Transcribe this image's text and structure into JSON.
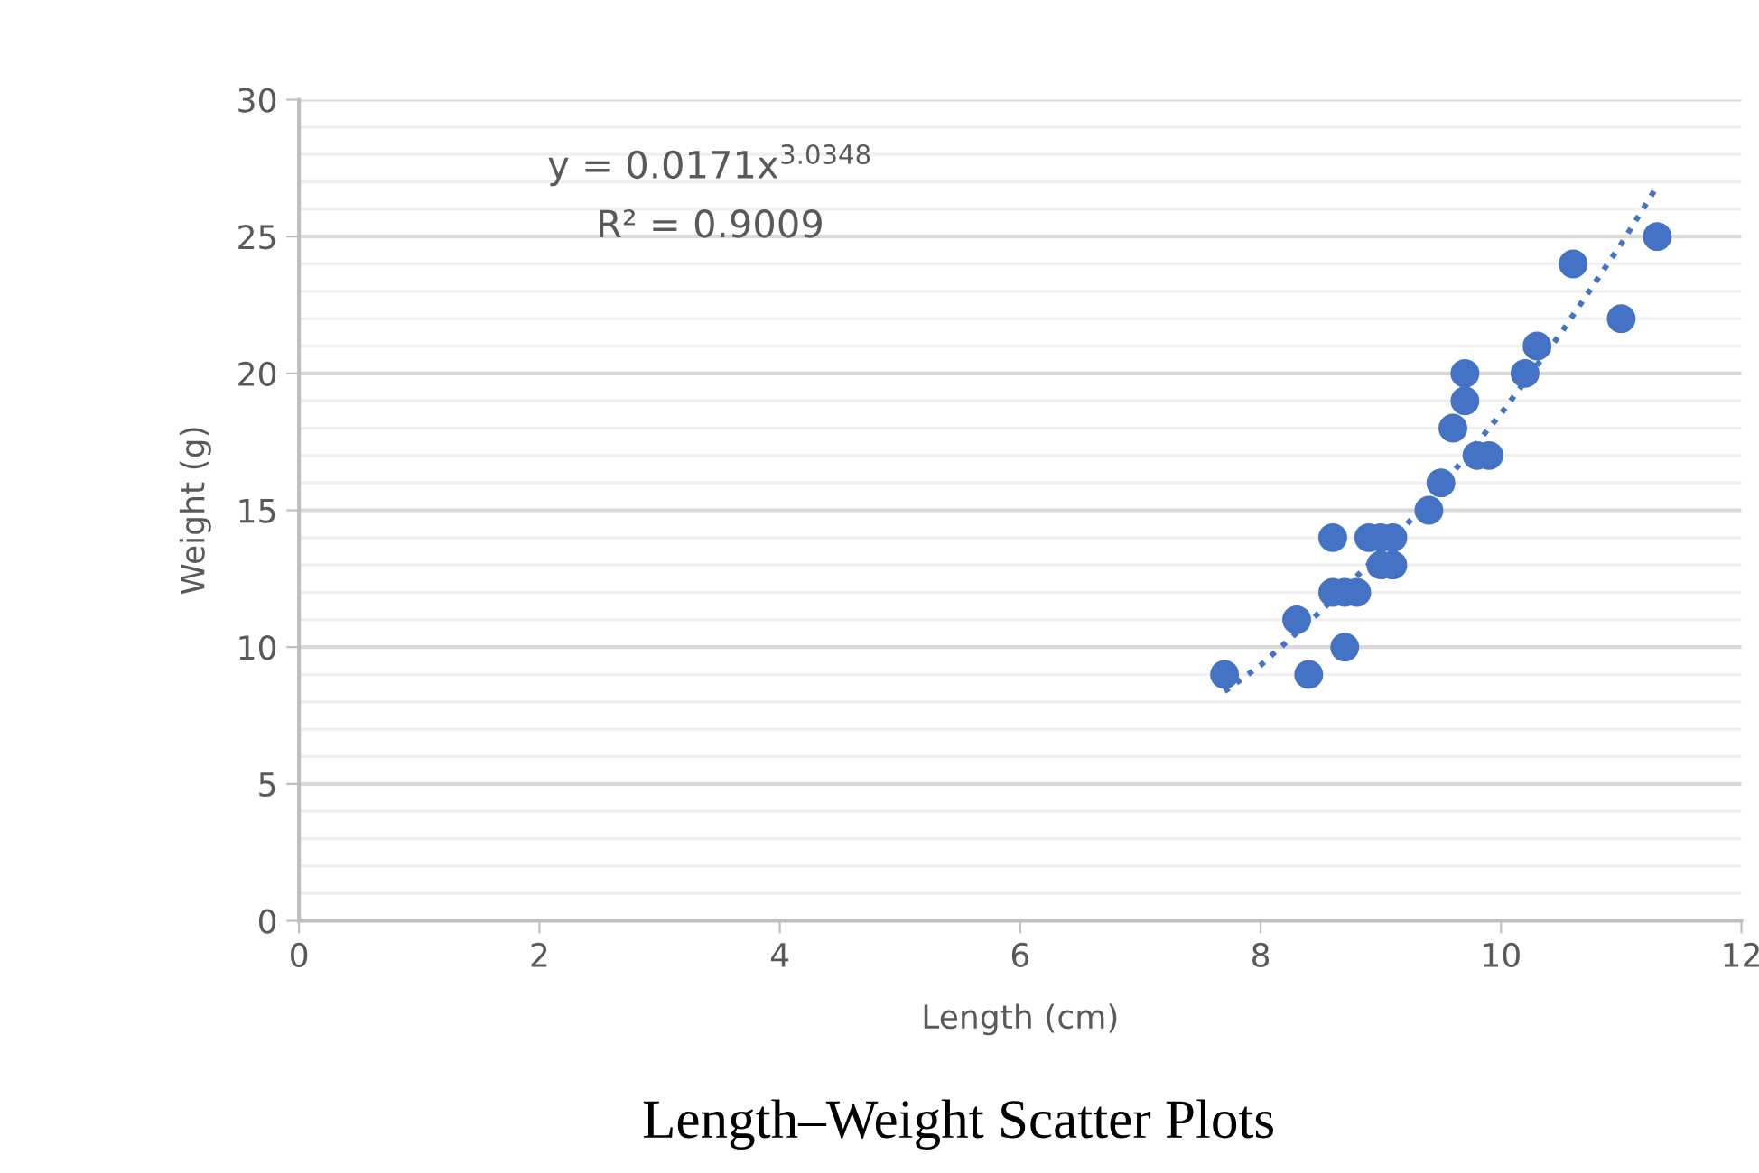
{
  "chart_data": {
    "type": "scatter",
    "title": "Length–Weight Scatter Plots",
    "xlabel": "Length (cm)",
    "ylabel": "Weight (g)",
    "annotations": [
      "y = 0.0171x$^{3.0348}$",
      "R² = 0.9009"
    ],
    "series": [
      {
        "color": "#4472c4",
        "marker": "circle",
        "x": [
          7.7,
          8.3,
          8.4,
          8.6,
          8.6,
          8.7,
          8.7,
          8.8,
          8.9,
          9.0,
          9.1,
          9.0,
          9.1,
          9.4,
          9.5,
          9.6,
          9.7,
          9.7,
          9.8,
          9.9,
          10.2,
          10.3,
          10.6,
          11.0,
          11.3
        ],
        "values": [
          9,
          11,
          9,
          14,
          12,
          10,
          12,
          12,
          14,
          14,
          14,
          13,
          13,
          15,
          16,
          18,
          19,
          20,
          17,
          17,
          20,
          21,
          24,
          22,
          25
        ]
      },
      {
        "type": "line",
        "color": "#4472c4",
        "line_style": "dotted",
        "x": [
          7.7,
          8,
          8.5,
          9,
          9.5,
          10,
          10.5,
          11,
          11.3
        ],
        "values": [
          8.38,
          9.34,
          11.31,
          13.45,
          15.85,
          18.53,
          21.48,
          24.73,
          26.85
        ]
      }
    ],
    "xlim": [
      0,
      12
    ],
    "xticks": [
      0,
      2,
      4,
      6,
      8,
      10,
      12
    ],
    "ylim": [
      0,
      30
    ],
    "yticks": [
      0,
      5,
      10,
      15,
      20,
      25,
      30
    ],
    "grid": "y"
  }
}
